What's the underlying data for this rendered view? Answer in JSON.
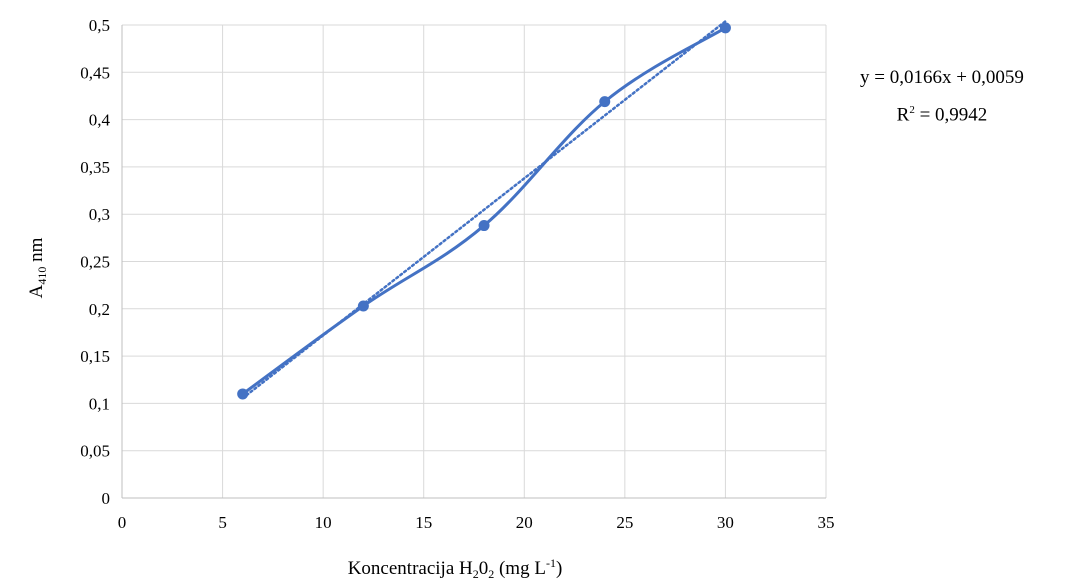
{
  "chart_data": {
    "type": "scatter",
    "x": [
      6,
      12,
      18,
      24,
      30
    ],
    "series": [
      {
        "values": [
          0.11,
          0.203,
          0.288,
          0.419,
          0.497
        ],
        "color": "#4472C4",
        "line": "solid",
        "marker": "circle"
      }
    ],
    "trendline": {
      "type": "linear",
      "slope": 0.0166,
      "intercept": 0.0059,
      "style": "dotted",
      "color": "#4472C4"
    },
    "xlim": [
      0,
      35
    ],
    "ylim": [
      0,
      0.5
    ],
    "x_ticks": [
      "0",
      "5",
      "10",
      "15",
      "20",
      "25",
      "30",
      "35"
    ],
    "y_ticks": [
      "0",
      "0,05",
      "0,1",
      "0,15",
      "0,2",
      "0,25",
      "0,3",
      "0,35",
      "0,4",
      "0,45",
      "0,5"
    ],
    "xlabel": {
      "prefix": "Koncentracija H",
      "sub1": "2",
      "mid": "0",
      "sub2": "2",
      "units": " (mg L",
      "sup": "-1",
      "close": ")"
    },
    "ylabel": {
      "main": "A",
      "sub": "410",
      "units": " nm"
    },
    "equation": "y = 0,0166x + 0,0059",
    "r2": {
      "label": "R",
      "sup": "2",
      "value": " = 0,9942"
    },
    "grid": true
  }
}
